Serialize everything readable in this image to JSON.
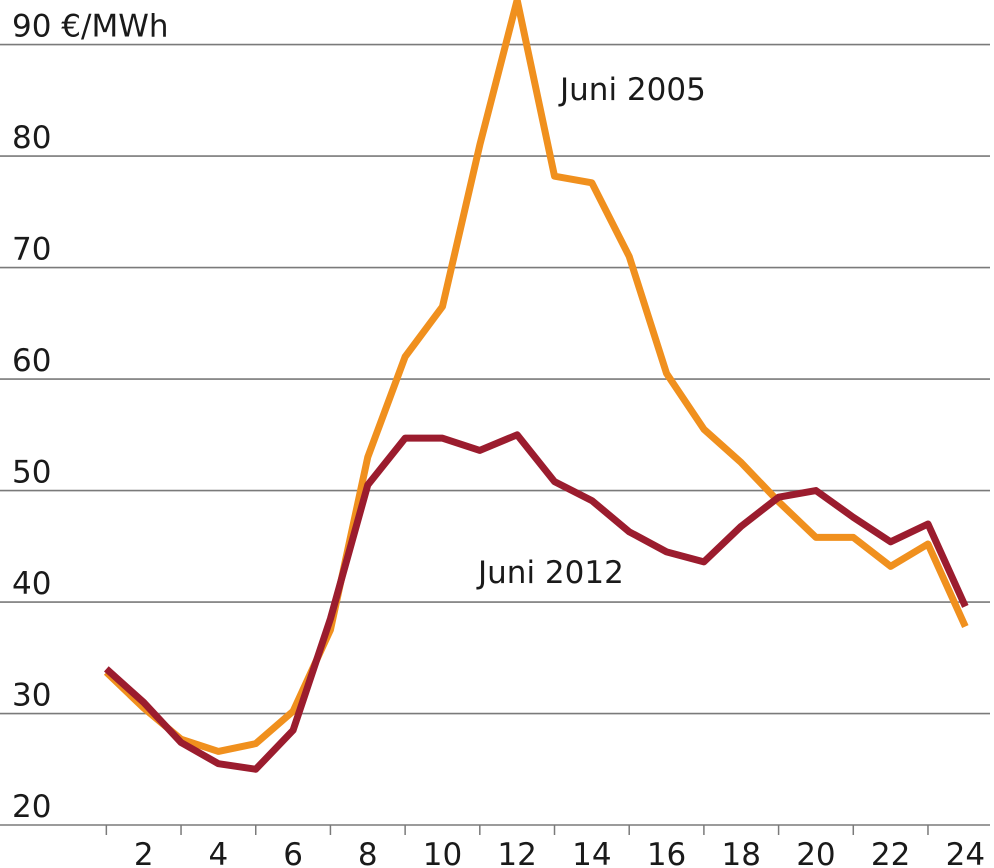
{
  "chart_data": {
    "type": "line",
    "x": [
      1,
      2,
      3,
      4,
      5,
      6,
      7,
      8,
      9,
      10,
      11,
      12,
      13,
      14,
      15,
      16,
      17,
      18,
      19,
      20,
      21,
      22,
      23,
      24
    ],
    "series": [
      {
        "name": "Juni 2005",
        "color": "#f0901e",
        "values": [
          33.7,
          30.5,
          27.7,
          26.6,
          27.3,
          30.2,
          37.5,
          53,
          62,
          66.5,
          81,
          94,
          78.2,
          77.6,
          71,
          60.5,
          55.5,
          52.5,
          49,
          45.8,
          45.8,
          43.2,
          45.2,
          37.8
        ]
      },
      {
        "name": "Juni 2012",
        "color": "#9b1c2e",
        "values": [
          34,
          31,
          27.4,
          25.5,
          25,
          28.5,
          38.5,
          50.5,
          54.7,
          54.7,
          53.6,
          55,
          50.8,
          49.1,
          46.3,
          44.5,
          43.6,
          46.8,
          49.4,
          50,
          47.6,
          45.4,
          47,
          39.6
        ]
      }
    ],
    "xlim": [
      0,
      24.5
    ],
    "xticks": [
      2,
      4,
      6,
      8,
      10,
      12,
      14,
      16,
      18,
      20,
      22,
      24
    ],
    "ylim": [
      20,
      94
    ],
    "yticks": [
      20,
      30,
      40,
      50,
      60,
      70,
      {
        "value": 90,
        "label": "90 €/MWh"
      },
      80
    ],
    "grid": true
  }
}
